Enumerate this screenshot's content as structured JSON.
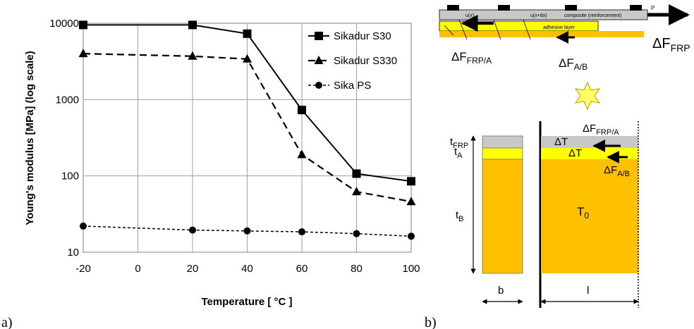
{
  "chart_data": {
    "type": "line",
    "title": "",
    "xlabel": "Temperature  [ °C ]",
    "ylabel": "Young's modulus [MPa] (log scale)",
    "xlim": [
      -20,
      100
    ],
    "ylim": [
      10,
      10000
    ],
    "yscale": "log",
    "grid": true,
    "legend": "top-right",
    "xticks": [
      "-20",
      "0",
      "20",
      "40",
      "60",
      "80",
      "100"
    ],
    "yticks": [
      "10",
      "100",
      "1000",
      "10000"
    ],
    "series": [
      {
        "name": "Sikadur S30",
        "marker": "square",
        "line": "solid",
        "x": [
          -20,
          20,
          40,
          60,
          80,
          100
        ],
        "y": [
          9500,
          9500,
          7300,
          730,
          107,
          85
        ]
      },
      {
        "name": "Sikadur S330",
        "marker": "triangle",
        "line": "dashed",
        "x": [
          -20,
          20,
          40,
          60,
          80,
          100
        ],
        "y": [
          4000,
          3700,
          3400,
          190,
          62,
          46
        ]
      },
      {
        "name": "Sika PS",
        "marker": "circle",
        "line": "dotted",
        "x": [
          -20,
          20,
          40,
          60,
          80,
          100
        ],
        "y": [
          22,
          19.5,
          19,
          18.5,
          17.5,
          16.2
        ]
      }
    ]
  },
  "panels": {
    "a": "a)",
    "b": "b)"
  },
  "diagram": {
    "top_labels": {
      "ux": "u(x)",
      "uxdx": "u(x+dx)",
      "composite": "composite (reinforcement)",
      "adhesive": "adhesive layer",
      "p": "P"
    },
    "forces": {
      "frp_a": "ΔF",
      "frp_a_sub": "FRP/A",
      "ab": "ΔF",
      "ab_sub": "A/B",
      "frp": "ΔF",
      "frp_sub": "FRP"
    },
    "section": {
      "tfrp": "t",
      "tfrp_sub": "FRP",
      "ta": "t",
      "ta_sub": "A",
      "tb": "t",
      "tb_sub": "B",
      "b": "b",
      "l": "l",
      "dT1": "ΔT",
      "dT2": "ΔT",
      "t0": "T",
      "t0_sub": "0",
      "f1": "ΔF",
      "f1_sub": "FRP/A",
      "f2": "ΔF",
      "f2_sub": "A/B"
    },
    "colors": {
      "composite": "#c8c8c8",
      "adhesive": "#ffff00",
      "substrate": "#ffc000",
      "star": "#ffff66"
    }
  }
}
